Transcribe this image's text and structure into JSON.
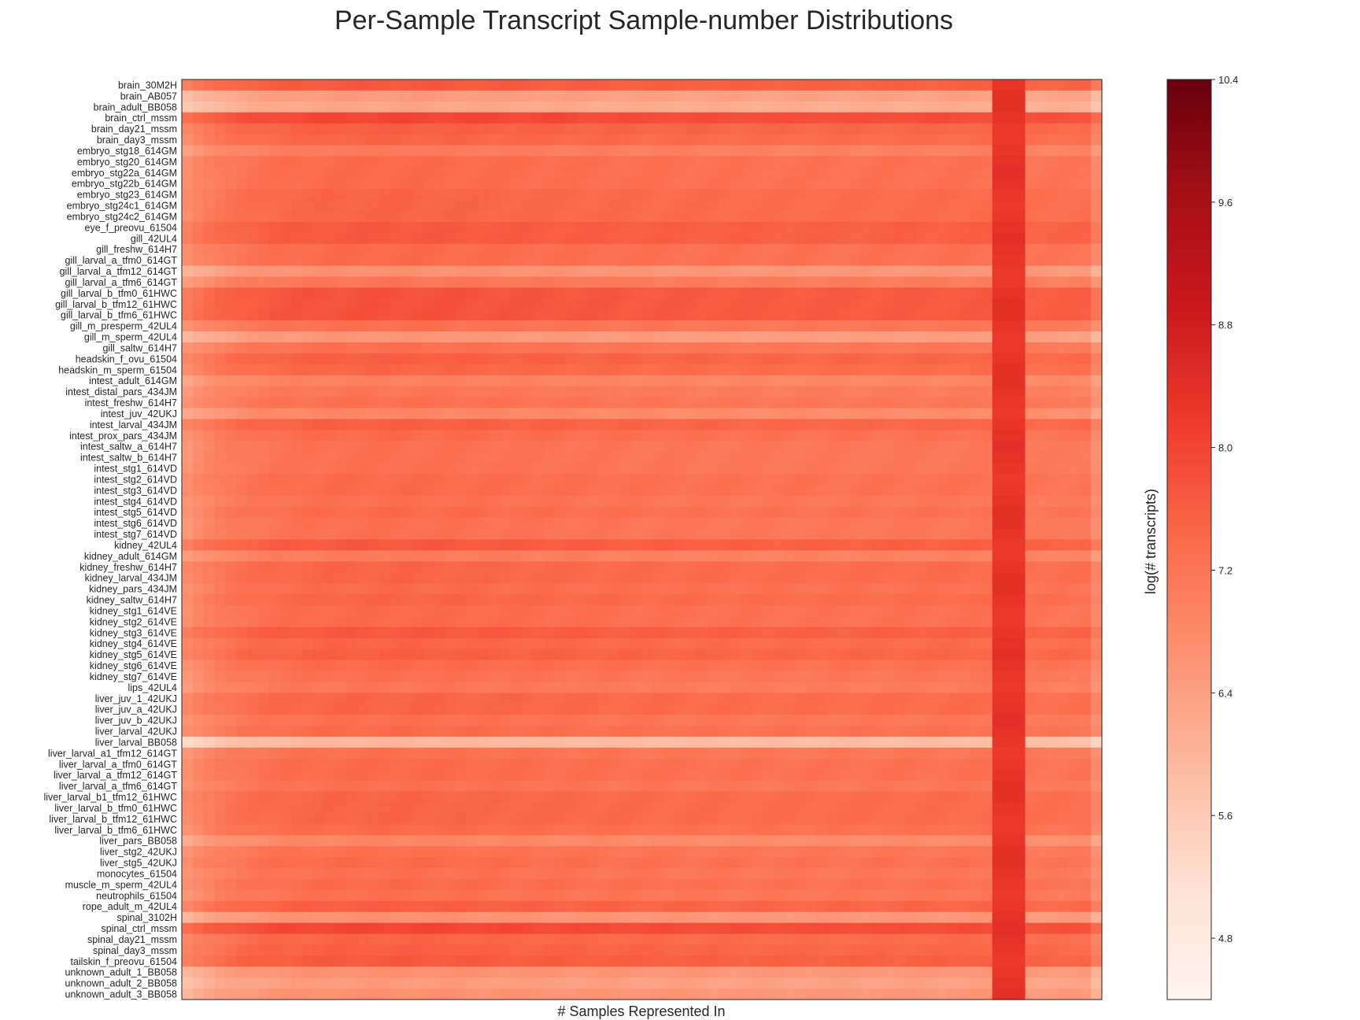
{
  "chart_data": {
    "type": "heatmap",
    "title": "Per-Sample Transcript Sample-number Distributions",
    "xlabel": "# Samples Represented In",
    "colorbar_label": "log(# transcripts)",
    "colormap": "Reds",
    "clim": [
      4.4,
      10.4
    ],
    "colorbar_ticks": [
      "10.4",
      "9.6",
      "8.8",
      "8.0",
      "7.2",
      "6.4",
      "5.6",
      "4.8"
    ],
    "n_columns": 84,
    "rows": [
      {
        "name": "brain_30M2H",
        "level": 7.7
      },
      {
        "name": "brain_AB057",
        "level": 6.5
      },
      {
        "name": "brain_adult_BB058",
        "level": 6.3
      },
      {
        "name": "brain_ctrl_mssm",
        "level": 8.0
      },
      {
        "name": "brain_day21_mssm",
        "level": 7.6
      },
      {
        "name": "brain_day3_mssm",
        "level": 7.5
      },
      {
        "name": "embryo_stg18_614GM",
        "level": 7.1
      },
      {
        "name": "embryo_stg20_614GM",
        "level": 7.4
      },
      {
        "name": "embryo_stg22a_614GM",
        "level": 7.4
      },
      {
        "name": "embryo_stg22b_614GM",
        "level": 7.4
      },
      {
        "name": "embryo_stg23_614GM",
        "level": 7.5
      },
      {
        "name": "embryo_stg24c1_614GM",
        "level": 7.5
      },
      {
        "name": "embryo_stg24c2_614GM",
        "level": 7.5
      },
      {
        "name": "eye_f_preovu_61504",
        "level": 7.7
      },
      {
        "name": "gill_42UL4",
        "level": 7.7
      },
      {
        "name": "gill_freshw_614H7",
        "level": 7.4
      },
      {
        "name": "gill_larval_a_tfm0_614GT",
        "level": 7.4
      },
      {
        "name": "gill_larval_a_tfm12_614GT",
        "level": 6.7
      },
      {
        "name": "gill_larval_a_tfm6_614GT",
        "level": 7.2
      },
      {
        "name": "gill_larval_b_tfm0_61HWC",
        "level": 7.8
      },
      {
        "name": "gill_larval_b_tfm12_61HWC",
        "level": 7.8
      },
      {
        "name": "gill_larval_b_tfm6_61HWC",
        "level": 7.8
      },
      {
        "name": "gill_m_presperm_42UL4",
        "level": 7.3
      },
      {
        "name": "gill_m_sperm_42UL4",
        "level": 6.6
      },
      {
        "name": "gill_saltw_614H7",
        "level": 7.3
      },
      {
        "name": "headskin_f_ovu_61504",
        "level": 7.6
      },
      {
        "name": "headskin_m_sperm_61504",
        "level": 7.5
      },
      {
        "name": "intest_adult_614GM",
        "level": 7.0
      },
      {
        "name": "intest_distal_pars_434JM",
        "level": 7.2
      },
      {
        "name": "intest_freshw_614H7",
        "level": 7.3
      },
      {
        "name": "intest_juv_42UKJ",
        "level": 6.9
      },
      {
        "name": "intest_larval_434JM",
        "level": 7.6
      },
      {
        "name": "intest_prox_pars_434JM",
        "level": 7.4
      },
      {
        "name": "intest_saltw_a_614H7",
        "level": 7.3
      },
      {
        "name": "intest_saltw_b_614H7",
        "level": 7.3
      },
      {
        "name": "intest_stg1_614VD",
        "level": 7.3
      },
      {
        "name": "intest_stg2_614VD",
        "level": 7.4
      },
      {
        "name": "intest_stg3_614VD",
        "level": 7.4
      },
      {
        "name": "intest_stg4_614VD",
        "level": 7.3
      },
      {
        "name": "intest_stg5_614VD",
        "level": 7.4
      },
      {
        "name": "intest_stg6_614VD",
        "level": 7.3
      },
      {
        "name": "intest_stg7_614VD",
        "level": 7.3
      },
      {
        "name": "kidney_42UL4",
        "level": 7.7
      },
      {
        "name": "kidney_adult_614GM",
        "level": 7.1
      },
      {
        "name": "kidney_freshw_614H7",
        "level": 7.5
      },
      {
        "name": "kidney_larval_434JM",
        "level": 7.5
      },
      {
        "name": "kidney_pars_434JM",
        "level": 7.4
      },
      {
        "name": "kidney_saltw_614H7",
        "level": 7.5
      },
      {
        "name": "kidney_stg1_614VE",
        "level": 7.4
      },
      {
        "name": "kidney_stg2_614VE",
        "level": 7.4
      },
      {
        "name": "kidney_stg3_614VE",
        "level": 7.7
      },
      {
        "name": "kidney_stg4_614VE",
        "level": 7.5
      },
      {
        "name": "kidney_stg5_614VE",
        "level": 7.6
      },
      {
        "name": "kidney_stg6_614VE",
        "level": 7.4
      },
      {
        "name": "kidney_stg7_614VE",
        "level": 7.3
      },
      {
        "name": "lips_42UL4",
        "level": 7.2
      },
      {
        "name": "liver_juv_1_42UKJ",
        "level": 7.5
      },
      {
        "name": "liver_juv_a_42UKJ",
        "level": 7.5
      },
      {
        "name": "liver_juv_b_42UKJ",
        "level": 7.3
      },
      {
        "name": "liver_larval_42UKJ",
        "level": 7.4
      },
      {
        "name": "liver_larval_BB058",
        "level": 6.0
      },
      {
        "name": "liver_larval_a1_tfm12_614GT",
        "level": 7.3
      },
      {
        "name": "liver_larval_a_tfm0_614GT",
        "level": 7.4
      },
      {
        "name": "liver_larval_a_tfm12_614GT",
        "level": 7.4
      },
      {
        "name": "liver_larval_a_tfm6_614GT",
        "level": 7.3
      },
      {
        "name": "liver_larval_b1_tfm12_61HWC",
        "level": 7.5
      },
      {
        "name": "liver_larval_b_tfm0_61HWC",
        "level": 7.5
      },
      {
        "name": "liver_larval_b_tfm12_61HWC",
        "level": 7.5
      },
      {
        "name": "liver_larval_b_tfm6_61HWC",
        "level": 7.4
      },
      {
        "name": "liver_pars_BB058",
        "level": 6.9
      },
      {
        "name": "liver_stg2_42UKJ",
        "level": 7.3
      },
      {
        "name": "liver_stg5_42UKJ",
        "level": 7.4
      },
      {
        "name": "monocytes_61504",
        "level": 7.3
      },
      {
        "name": "muscle_m_sperm_42UL4",
        "level": 7.4
      },
      {
        "name": "neutrophils_61504",
        "level": 7.3
      },
      {
        "name": "rope_adult_m_42UL4",
        "level": 7.6
      },
      {
        "name": "spinal_3102H",
        "level": 6.7
      },
      {
        "name": "spinal_ctrl_mssm",
        "level": 8.0
      },
      {
        "name": "spinal_day21_mssm",
        "level": 7.5
      },
      {
        "name": "spinal_day3_mssm",
        "level": 7.6
      },
      {
        "name": "tailskin_f_preovu_61504",
        "level": 7.7
      },
      {
        "name": "unknown_adult_1_BB058",
        "level": 6.7
      },
      {
        "name": "unknown_adult_2_BB058",
        "level": 6.5
      },
      {
        "name": "unknown_adult_3_BB058",
        "level": 6.7
      }
    ]
  }
}
